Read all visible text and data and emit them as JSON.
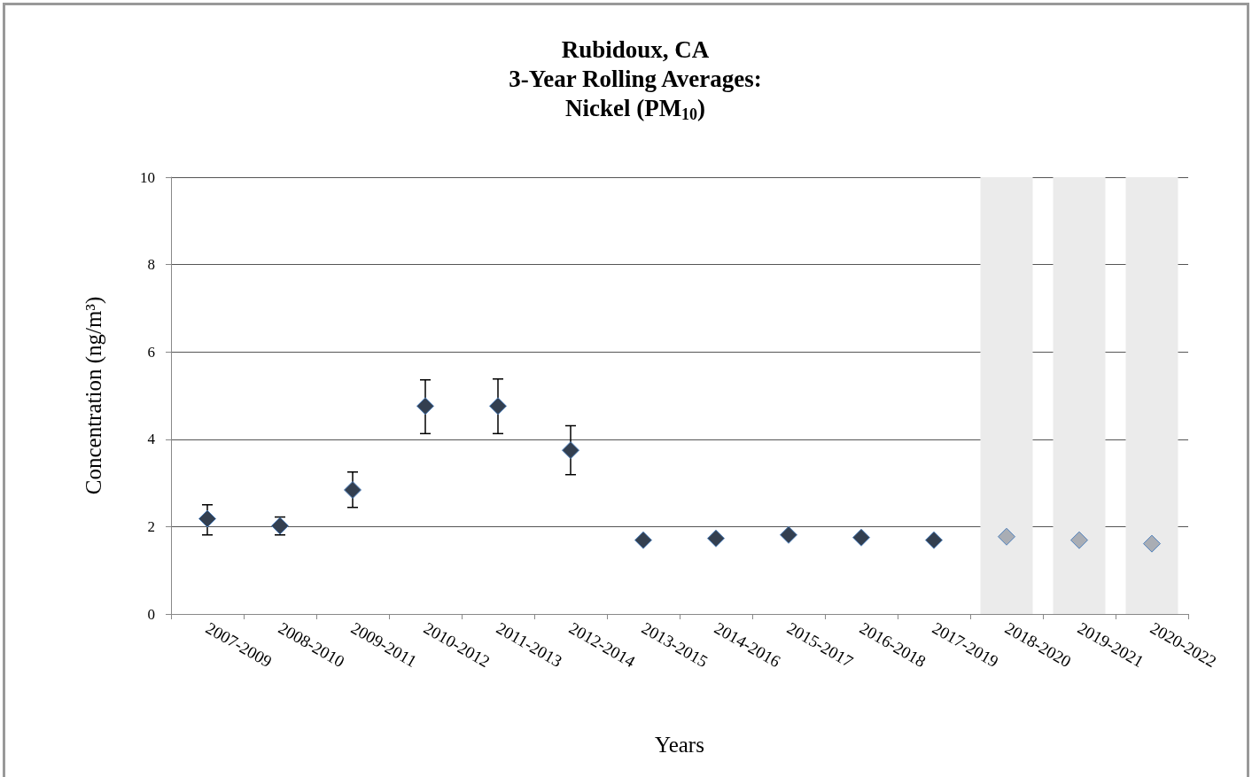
{
  "chart_data": {
    "type": "scatter",
    "title": "Rubidoux, CA\n3-Year Rolling Averages:\nNickel (PM$_{10}$)",
    "xlabel": "Years",
    "ylabel": "Concentration (ng/m³)",
    "categories": [
      "2007-2009",
      "2008-2010",
      "2009-2011",
      "2010-2012",
      "2011-2013",
      "2012-2014",
      "2013-2015",
      "2014-2016",
      "2015-2017",
      "2016-2018",
      "2017-2019",
      "2018-2020",
      "2019-2021",
      "2020-2022"
    ],
    "series": [
      {
        "colors": [
          "#333f50",
          "#333f50",
          "#333f50",
          "#333f50",
          "#333f50",
          "#333f50",
          "#333f50",
          "#333f50",
          "#333f50",
          "#333f50",
          "#333f50",
          "#a9adb4",
          "#a9adb4",
          "#a9adb4"
        ],
        "values": [
          2.18,
          2.02,
          2.84,
          4.76,
          4.76,
          3.75,
          1.69,
          1.73,
          1.81,
          1.75,
          1.69,
          1.77,
          1.69,
          1.61
        ],
        "errors": [
          [
            1.81,
            2.5
          ],
          [
            1.81,
            2.22
          ],
          [
            2.44,
            3.25
          ],
          [
            4.13,
            5.36
          ],
          [
            4.13,
            5.38
          ],
          [
            3.19,
            4.31
          ],
          null,
          null,
          null,
          null,
          null,
          null,
          null,
          null
        ]
      }
    ],
    "ylim": [
      0,
      10
    ],
    "yticks": [
      0,
      2,
      4,
      6,
      8,
      10
    ],
    "grid": "y",
    "marker": "diamond",
    "bands": [
      {
        "axis": "x",
        "from": "2018-2020",
        "to": "2018-2020",
        "color": "#ebebeb"
      },
      {
        "axis": "x",
        "from": "2019-2021",
        "to": "2019-2021",
        "color": "#ebebeb"
      },
      {
        "axis": "x",
        "from": "2020-2022",
        "to": "2020-2022",
        "color": "#ebebeb"
      }
    ]
  }
}
